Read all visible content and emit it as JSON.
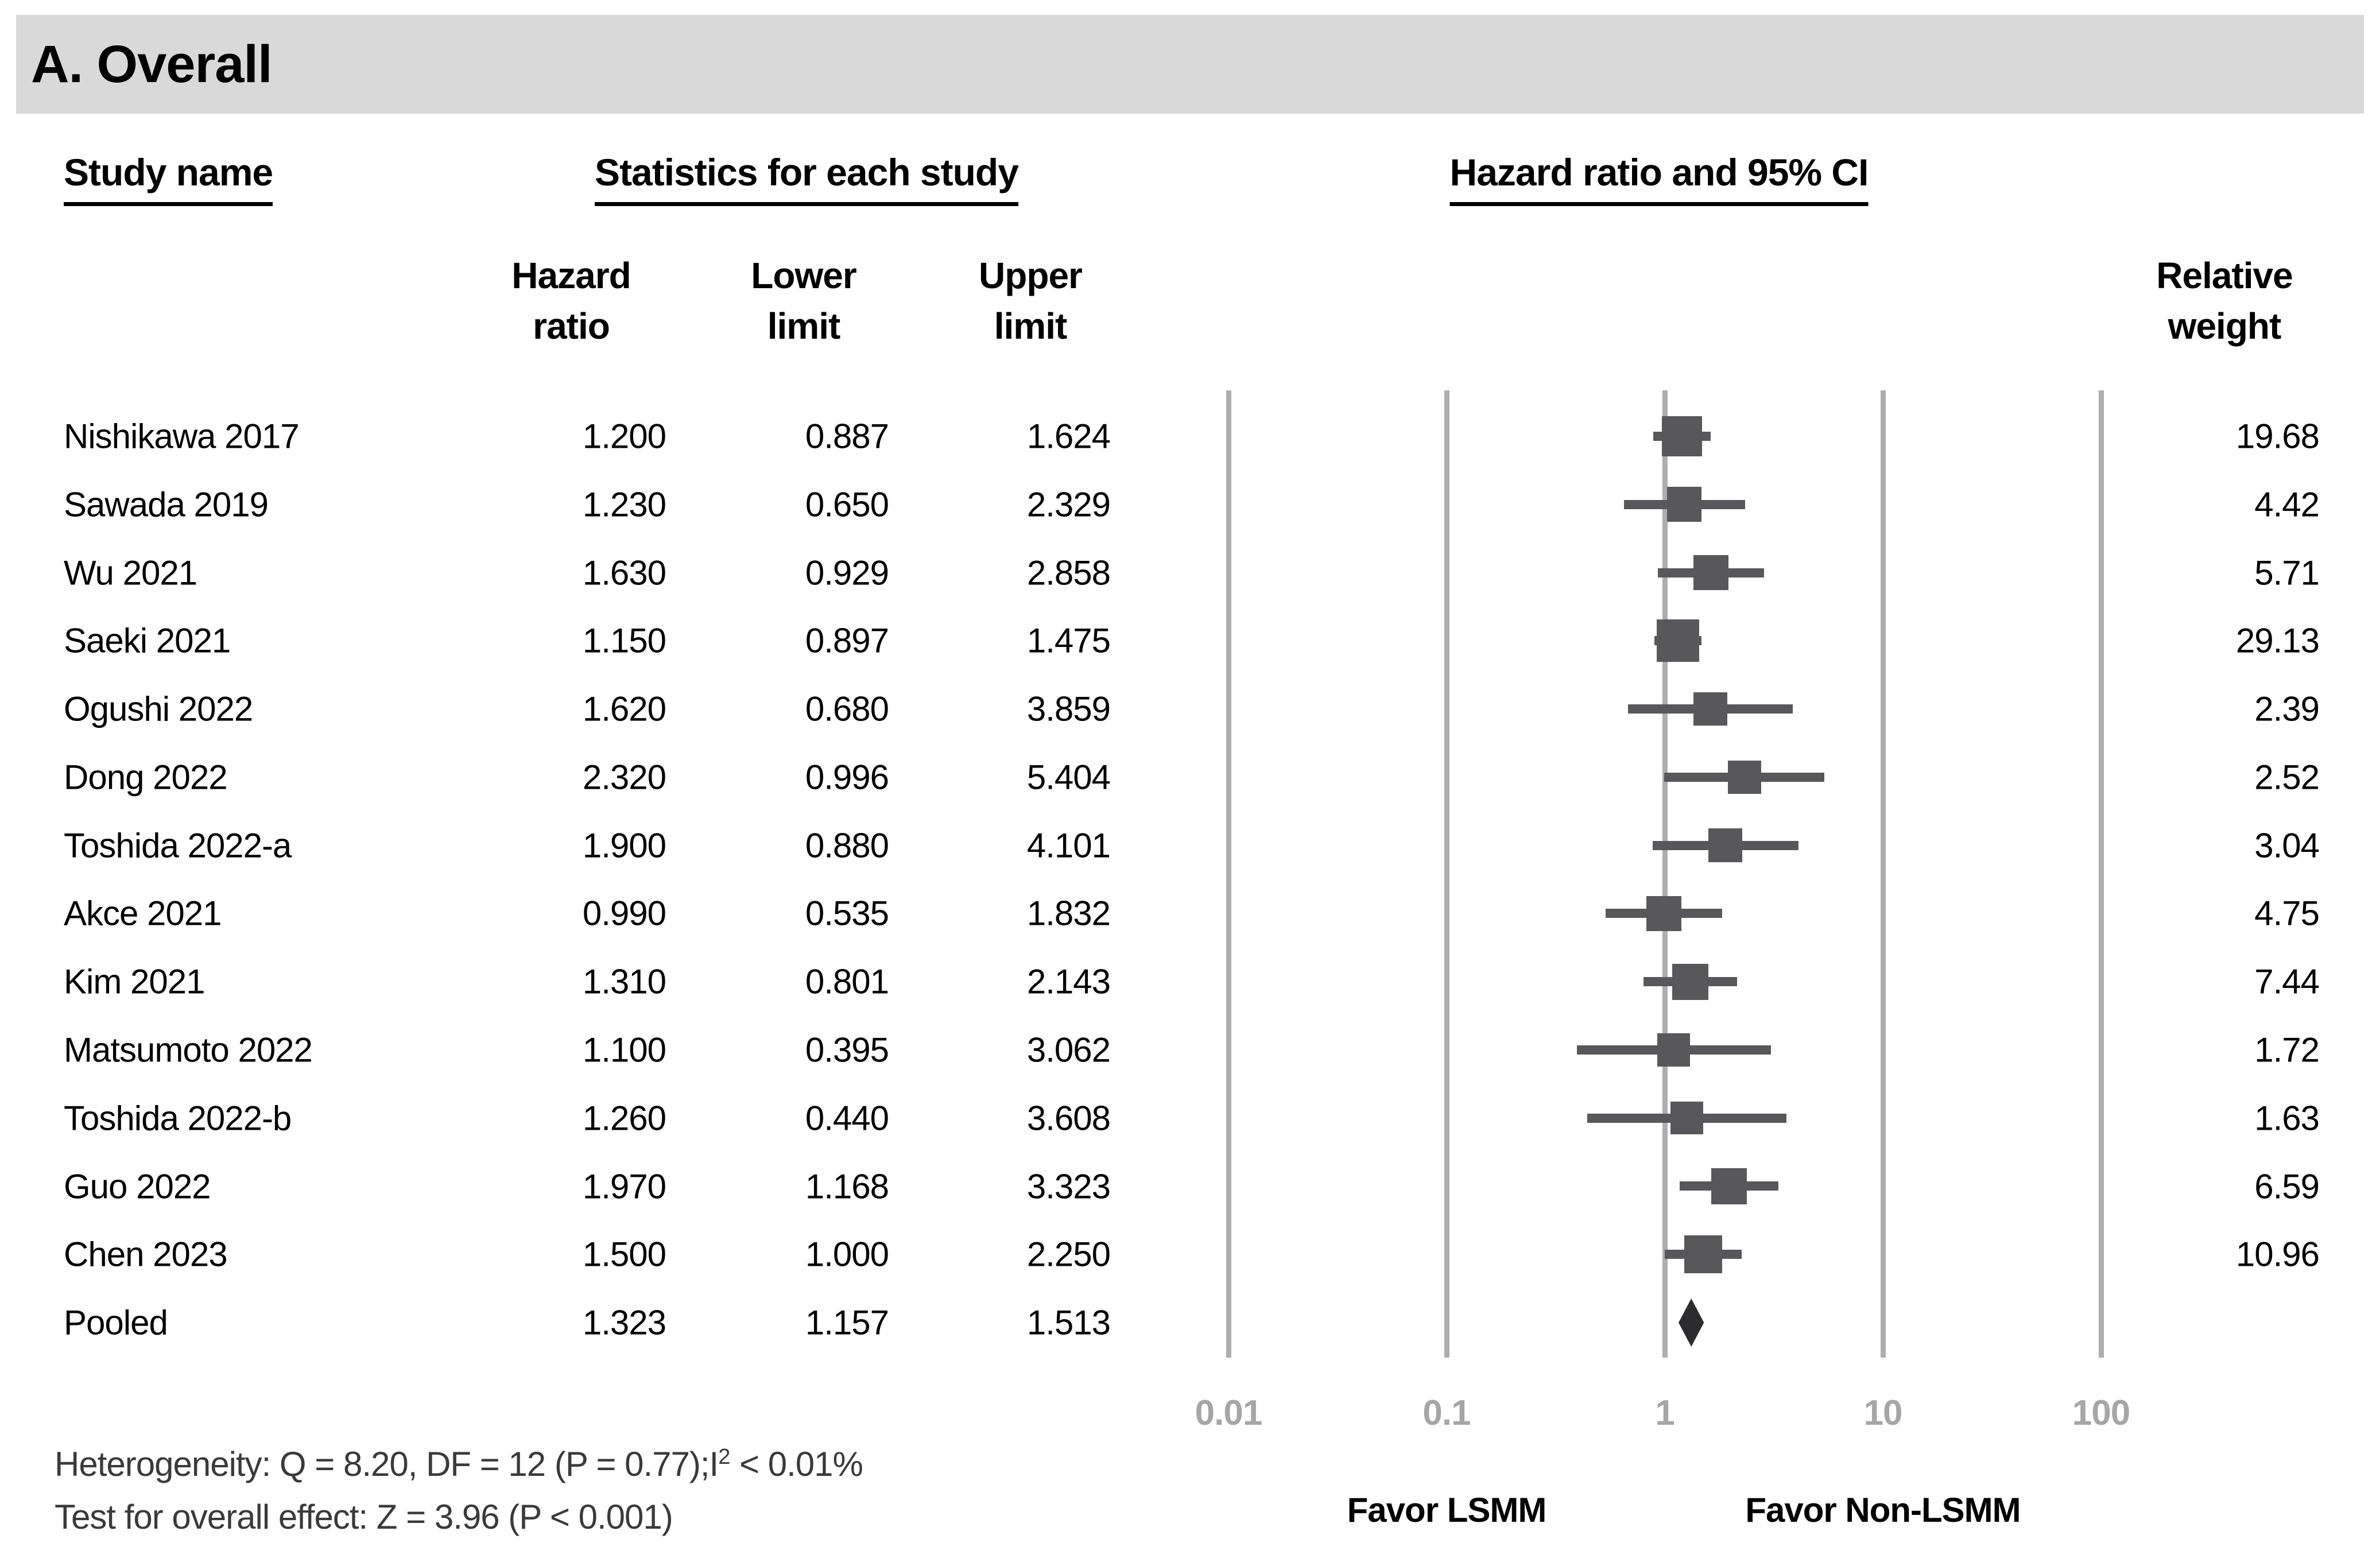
{
  "title": "A. Overall",
  "headers": {
    "study": "Study name",
    "stats_group": "Statistics for each study",
    "plot_group": "Hazard ratio and 95% CI",
    "hr1": "Hazard",
    "hr2": "ratio",
    "lo1": "Lower",
    "lo2": "limit",
    "up1": "Upper",
    "up2": "limit",
    "wt1": "Relative",
    "wt2": "weight"
  },
  "chart_data": {
    "type": "scatter",
    "variant": "forest-plot",
    "x_scale": "log10",
    "x_range": [
      0.01,
      100
    ],
    "x_tick_values": [
      0.01,
      0.1,
      1,
      10,
      100
    ],
    "x_tick_labels": [
      "0.01",
      "0.1",
      "1",
      "10",
      "100"
    ],
    "grid": "vertical-decade-lines",
    "favor_left": "Favor LSMM",
    "favor_right": "Favor Non-LSMM",
    "studies": [
      {
        "name": "Nishikawa 2017",
        "hr": 1.2,
        "lower": 0.887,
        "upper": 1.624,
        "weight": 19.68,
        "hr_text": "1.200",
        "lower_text": "0.887",
        "upper_text": "1.624",
        "weight_text": "19.68",
        "marker": "square"
      },
      {
        "name": "Sawada 2019",
        "hr": 1.23,
        "lower": 0.65,
        "upper": 2.329,
        "weight": 4.42,
        "hr_text": "1.230",
        "lower_text": "0.650",
        "upper_text": "2.329",
        "weight_text": "4.42",
        "marker": "square"
      },
      {
        "name": "Wu 2021",
        "hr": 1.63,
        "lower": 0.929,
        "upper": 2.858,
        "weight": 5.71,
        "hr_text": "1.630",
        "lower_text": "0.929",
        "upper_text": "2.858",
        "weight_text": "5.71",
        "marker": "square"
      },
      {
        "name": "Saeki 2021",
        "hr": 1.15,
        "lower": 0.897,
        "upper": 1.475,
        "weight": 29.13,
        "hr_text": "1.150",
        "lower_text": "0.897",
        "upper_text": "1.475",
        "weight_text": "29.13",
        "marker": "square"
      },
      {
        "name": "Ogushi 2022",
        "hr": 1.62,
        "lower": 0.68,
        "upper": 3.859,
        "weight": 2.39,
        "hr_text": "1.620",
        "lower_text": "0.680",
        "upper_text": "3.859",
        "weight_text": "2.39",
        "marker": "square"
      },
      {
        "name": "Dong 2022",
        "hr": 2.32,
        "lower": 0.996,
        "upper": 5.404,
        "weight": 2.52,
        "hr_text": "2.320",
        "lower_text": "0.996",
        "upper_text": "5.404",
        "weight_text": "2.52",
        "marker": "square"
      },
      {
        "name": "Toshida 2022-a",
        "hr": 1.9,
        "lower": 0.88,
        "upper": 4.101,
        "weight": 3.04,
        "hr_text": "1.900",
        "lower_text": "0.880",
        "upper_text": "4.101",
        "weight_text": "3.04",
        "marker": "square"
      },
      {
        "name": "Akce 2021",
        "hr": 0.99,
        "lower": 0.535,
        "upper": 1.832,
        "weight": 4.75,
        "hr_text": "0.990",
        "lower_text": "0.535",
        "upper_text": "1.832",
        "weight_text": "4.75",
        "marker": "square"
      },
      {
        "name": "Kim 2021",
        "hr": 1.31,
        "lower": 0.801,
        "upper": 2.143,
        "weight": 7.44,
        "hr_text": "1.310",
        "lower_text": "0.801",
        "upper_text": "2.143",
        "weight_text": "7.44",
        "marker": "square"
      },
      {
        "name": "Matsumoto 2022",
        "hr": 1.1,
        "lower": 0.395,
        "upper": 3.062,
        "weight": 1.72,
        "hr_text": "1.100",
        "lower_text": "0.395",
        "upper_text": "3.062",
        "weight_text": "1.72",
        "marker": "square"
      },
      {
        "name": "Toshida 2022-b",
        "hr": 1.26,
        "lower": 0.44,
        "upper": 3.608,
        "weight": 1.63,
        "hr_text": "1.260",
        "lower_text": "0.440",
        "upper_text": "3.608",
        "weight_text": "1.63",
        "marker": "square"
      },
      {
        "name": "Guo 2022",
        "hr": 1.97,
        "lower": 1.168,
        "upper": 3.323,
        "weight": 6.59,
        "hr_text": "1.970",
        "lower_text": "1.168",
        "upper_text": "3.323",
        "weight_text": "6.59",
        "marker": "square"
      },
      {
        "name": "Chen 2023",
        "hr": 1.5,
        "lower": 1.0,
        "upper": 2.25,
        "weight": 10.96,
        "hr_text": "1.500",
        "lower_text": "1.000",
        "upper_text": "2.250",
        "weight_text": "10.96",
        "marker": "square"
      },
      {
        "name": "Pooled",
        "hr": 1.323,
        "lower": 1.157,
        "upper": 1.513,
        "weight": null,
        "hr_text": "1.323",
        "lower_text": "1.157",
        "upper_text": "1.513",
        "weight_text": "",
        "marker": "diamond"
      }
    ]
  },
  "footer": {
    "het_pre": "Heterogeneity: Q = 8.20, DF = 12 (P = 0.77);I",
    "het_sup": "2",
    "het_post": " < 0.01%",
    "effect": "Test for overall effect: Z = 3.96 (P < 0.001)"
  },
  "colors": {
    "title_bar_bg": "#d9d9d9",
    "marker": "#58585a",
    "diamond": "#2c2c2e",
    "gridline": "#aeaeae",
    "axis_label": "#a6a6a6",
    "text": "#000000",
    "footer_text": "#3a3a3a"
  }
}
